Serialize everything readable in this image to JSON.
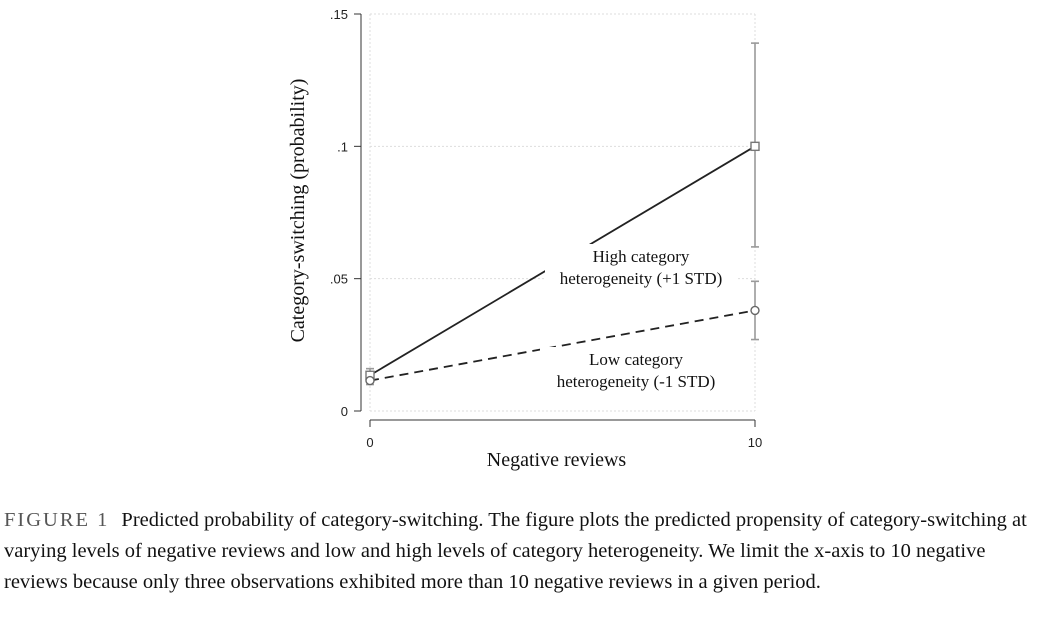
{
  "chart_data": {
    "type": "line",
    "x": [
      0,
      10
    ],
    "xlabel": "Negative reviews",
    "ylabel": "Category-switching (probability)",
    "xlim": [
      0,
      10
    ],
    "ylim": [
      0,
      0.15
    ],
    "xticks": [
      "0",
      "10"
    ],
    "yticks": [
      {
        "value": 0,
        "label": "0"
      },
      {
        "value": 0.05,
        "label": ".05"
      },
      {
        "value": 0.1,
        "label": ".1"
      },
      {
        "value": 0.15,
        "label": ".15"
      }
    ],
    "grid": true,
    "series": [
      {
        "values": [
          0.0135,
          0.1
        ],
        "ci_low": [
          0.011,
          0.062
        ],
        "ci_high": [
          0.016,
          0.139
        ],
        "style": "solid",
        "marker": "square",
        "annotation": [
          "High category",
          "heterogeneity (+1 STD)"
        ]
      },
      {
        "values": [
          0.0115,
          0.038
        ],
        "ci_low": [
          0.01,
          0.027
        ],
        "ci_high": [
          0.013,
          0.049
        ],
        "style": "dashed",
        "marker": "circle",
        "annotation": [
          "Low category",
          "heterogeneity (-1 STD)"
        ]
      }
    ],
    "colors": {
      "line": "#222222",
      "ci": "#9a9a9a",
      "grid": "#dddddd"
    }
  },
  "caption": {
    "label": "FIGURE 1",
    "text": "Predicted probability of category-switching. The figure plots the predicted propensity of category-switching at varying levels of negative reviews and low and high levels of category heterogeneity. We limit the x-axis to 10 negative reviews because only three observations exhibited more than 10 negative reviews in a given period."
  }
}
